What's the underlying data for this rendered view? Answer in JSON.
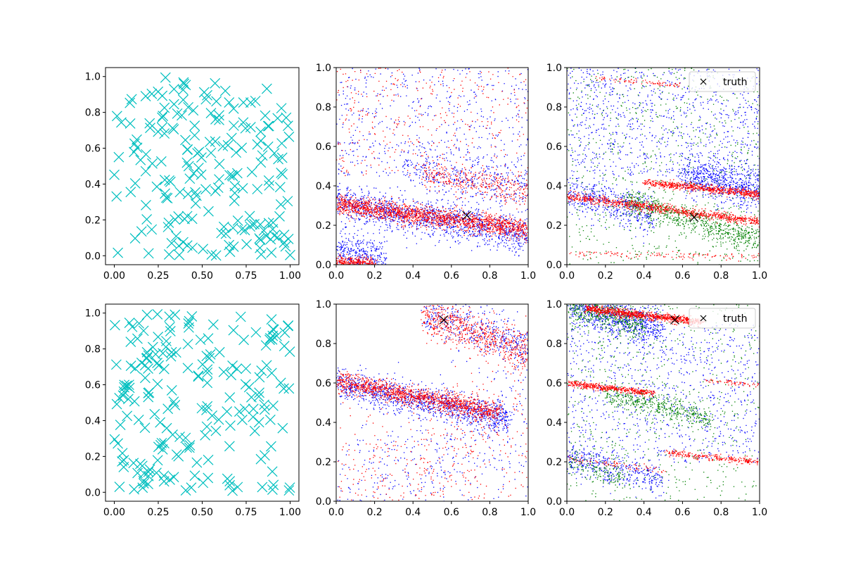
{
  "figure": {
    "layout": "2x3 grid of scatter panels"
  },
  "chart_data": [
    {
      "panel": "top-left",
      "type": "scatter",
      "xlim": [
        -0.05,
        1.05
      ],
      "ylim": [
        -0.05,
        1.05
      ],
      "xticks": [
        "0.00",
        "0.25",
        "0.50",
        "0.75",
        "1.00"
      ],
      "yticks": [
        "0.0",
        "0.2",
        "0.4",
        "0.6",
        "0.8",
        "1.0"
      ],
      "series": [
        {
          "marker": "x-large",
          "color": "#00bfbf",
          "count": 200,
          "distribution": "uniform over [0,1]x[0,1]"
        }
      ]
    },
    {
      "panel": "top-middle",
      "type": "scatter",
      "xlim": [
        0,
        1
      ],
      "ylim": [
        0,
        1
      ],
      "xticks": [
        "0.0",
        "0.2",
        "0.4",
        "0.6",
        "0.8",
        "1.0"
      ],
      "yticks": [
        "0.0",
        "0.2",
        "0.4",
        "0.6",
        "0.8",
        "1.0"
      ],
      "series": [
        {
          "color": "#0000ff",
          "marker": "dot",
          "bands": [
            {
              "x": [
                0,
                1
              ],
              "y": [
                0.32,
                0.15
              ],
              "spread": 0.045,
              "count": 1400
            },
            {
              "x": [
                0,
                0.25
              ],
              "y": [
                0.07,
                0.03
              ],
              "spread": 0.05,
              "count": 350
            },
            {
              "x": [
                0.35,
                1
              ],
              "y": [
                0.5,
                0.38
              ],
              "spread": 0.06,
              "count": 400
            },
            {
              "x": [
                0,
                1
              ],
              "y": [
                0.45,
                1.0
              ],
              "spread": 0.35,
              "count": 500
            }
          ]
        },
        {
          "color": "#ff0000",
          "marker": "dot",
          "bands": [
            {
              "x": [
                0,
                1
              ],
              "y": [
                0.31,
                0.18
              ],
              "spread": 0.025,
              "count": 1700
            },
            {
              "x": [
                0,
                0.2
              ],
              "y": [
                0.02,
                0.01
              ],
              "spread": 0.015,
              "count": 300
            },
            {
              "x": [
                0.45,
                1
              ],
              "y": [
                0.47,
                0.37
              ],
              "spread": 0.04,
              "count": 350
            },
            {
              "x": [
                0,
                1
              ],
              "y": [
                0.45,
                1.0
              ],
              "spread": 0.35,
              "count": 350
            }
          ]
        }
      ],
      "truth": {
        "x": 0.68,
        "y": 0.25
      }
    },
    {
      "panel": "top-right",
      "type": "scatter",
      "xlim": [
        0,
        1
      ],
      "ylim": [
        0,
        1
      ],
      "xticks": [
        "0.0",
        "0.2",
        "0.4",
        "0.6",
        "0.8",
        "1.0"
      ],
      "yticks": [
        "0.0",
        "0.2",
        "0.4",
        "0.6",
        "0.8",
        "1.0"
      ],
      "series": [
        {
          "color": "#0000ff",
          "marker": "dot",
          "bands": [
            {
              "x": [
                0,
                0.45
              ],
              "y": [
                0.38,
                0.25
              ],
              "spread": 0.05,
              "count": 500
            },
            {
              "x": [
                0.6,
                1
              ],
              "y": [
                0.45,
                0.38
              ],
              "spread": 0.05,
              "count": 700
            },
            {
              "x": [
                0,
                1
              ],
              "y": [
                0.45,
                1.0
              ],
              "spread": 0.3,
              "count": 900
            }
          ]
        },
        {
          "color": "#008000",
          "marker": "dot",
          "bands": [
            {
              "x": [
                0.3,
                1
              ],
              "y": [
                0.33,
                0.12
              ],
              "spread": 0.035,
              "count": 700
            },
            {
              "x": [
                0,
                1
              ],
              "y": [
                0.0,
                1.0
              ],
              "spread": 0.5,
              "count": 700
            }
          ]
        },
        {
          "color": "#ff0000",
          "marker": "dot",
          "bands": [
            {
              "x": [
                0,
                1
              ],
              "y": [
                0.35,
                0.22
              ],
              "spread": 0.012,
              "count": 900
            },
            {
              "x": [
                0.4,
                1
              ],
              "y": [
                0.42,
                0.36
              ],
              "spread": 0.01,
              "count": 650
            },
            {
              "x": [
                0.15,
                0.6
              ],
              "y": [
                0.95,
                0.91
              ],
              "spread": 0.006,
              "count": 80
            },
            {
              "x": [
                0,
                1
              ],
              "y": [
                0.06,
                0.04
              ],
              "spread": 0.008,
              "count": 120
            }
          ]
        }
      ],
      "truth": {
        "x": 0.66,
        "y": 0.24
      },
      "legend": {
        "label": "truth",
        "placement": "upper-right"
      }
    },
    {
      "panel": "bottom-left",
      "type": "scatter",
      "xlim": [
        -0.05,
        1.05
      ],
      "ylim": [
        -0.05,
        1.05
      ],
      "xticks": [
        "0.00",
        "0.25",
        "0.50",
        "0.75",
        "1.00"
      ],
      "yticks": [
        "0.0",
        "0.2",
        "0.4",
        "0.6",
        "0.8",
        "1.0"
      ],
      "series": [
        {
          "marker": "x-large",
          "color": "#00bfbf",
          "count": 200,
          "distribution": "uniform over [0,1]x[0,1]"
        }
      ]
    },
    {
      "panel": "bottom-middle",
      "type": "scatter",
      "xlim": [
        0,
        1
      ],
      "ylim": [
        0,
        1
      ],
      "xticks": [
        "0.0",
        "0.2",
        "0.4",
        "0.6",
        "0.8",
        "1.0"
      ],
      "yticks": [
        "0.0",
        "0.2",
        "0.4",
        "0.6",
        "0.8",
        "1.0"
      ],
      "series": [
        {
          "color": "#0000ff",
          "marker": "dot",
          "bands": [
            {
              "x": [
                0,
                0.9
              ],
              "y": [
                0.6,
                0.42
              ],
              "spread": 0.04,
              "count": 1200
            },
            {
              "x": [
                0.45,
                1
              ],
              "y": [
                0.97,
                0.78
              ],
              "spread": 0.06,
              "count": 450
            },
            {
              "x": [
                0,
                1
              ],
              "y": [
                0.0,
                0.4
              ],
              "spread": 0.2,
              "count": 500
            }
          ]
        },
        {
          "color": "#ff0000",
          "marker": "dot",
          "bands": [
            {
              "x": [
                0,
                0.85
              ],
              "y": [
                0.61,
                0.45
              ],
              "spread": 0.025,
              "count": 1300
            },
            {
              "x": [
                0.45,
                1
              ],
              "y": [
                0.95,
                0.75
              ],
              "spread": 0.05,
              "count": 700
            },
            {
              "x": [
                0,
                1
              ],
              "y": [
                0.0,
                0.35
              ],
              "spread": 0.2,
              "count": 500
            }
          ]
        }
      ],
      "truth": {
        "x": 0.56,
        "y": 0.92
      }
    },
    {
      "panel": "bottom-right",
      "type": "scatter",
      "xlim": [
        0,
        1
      ],
      "ylim": [
        0,
        1
      ],
      "xticks": [
        "0.0",
        "0.2",
        "0.4",
        "0.6",
        "0.8",
        "1.0"
      ],
      "yticks": [
        "0.0",
        "0.2",
        "0.4",
        "0.6",
        "0.8",
        "1.0"
      ],
      "series": [
        {
          "color": "#0000ff",
          "marker": "dot",
          "bands": [
            {
              "x": [
                0,
                0.5
              ],
              "y": [
                1.0,
                0.88
              ],
              "spread": 0.05,
              "count": 800
            },
            {
              "x": [
                0,
                0.5
              ],
              "y": [
                0.22,
                0.1
              ],
              "spread": 0.04,
              "count": 400
            },
            {
              "x": [
                0,
                1
              ],
              "y": [
                0.2,
                0.9
              ],
              "spread": 0.25,
              "count": 900
            }
          ]
        },
        {
          "color": "#008000",
          "marker": "dot",
          "bands": [
            {
              "x": [
                0,
                0.4
              ],
              "y": [
                1.0,
                0.9
              ],
              "spread": 0.04,
              "count": 500
            },
            {
              "x": [
                0.2,
                0.75
              ],
              "y": [
                0.55,
                0.42
              ],
              "spread": 0.03,
              "count": 450
            },
            {
              "x": [
                0,
                0.3
              ],
              "y": [
                0.2,
                0.12
              ],
              "spread": 0.04,
              "count": 150
            },
            {
              "x": [
                0,
                1
              ],
              "y": [
                0.0,
                1.0
              ],
              "spread": 0.5,
              "count": 600
            }
          ]
        },
        {
          "color": "#ff0000",
          "marker": "dot",
          "bands": [
            {
              "x": [
                0.1,
                0.7
              ],
              "y": [
                0.98,
                0.91
              ],
              "spread": 0.01,
              "count": 900
            },
            {
              "x": [
                0,
                0.45
              ],
              "y": [
                0.6,
                0.55
              ],
              "spread": 0.008,
              "count": 450
            },
            {
              "x": [
                0.5,
                1
              ],
              "y": [
                0.25,
                0.2
              ],
              "spread": 0.008,
              "count": 250
            },
            {
              "x": [
                0.7,
                1
              ],
              "y": [
                0.62,
                0.59
              ],
              "spread": 0.006,
              "count": 60
            },
            {
              "x": [
                0,
                0.5
              ],
              "y": [
                0.22,
                0.16
              ],
              "spread": 0.008,
              "count": 80
            }
          ]
        }
      ],
      "truth": {
        "x": 0.56,
        "y": 0.92
      },
      "legend": {
        "label": "truth",
        "placement": "upper-right"
      }
    }
  ]
}
